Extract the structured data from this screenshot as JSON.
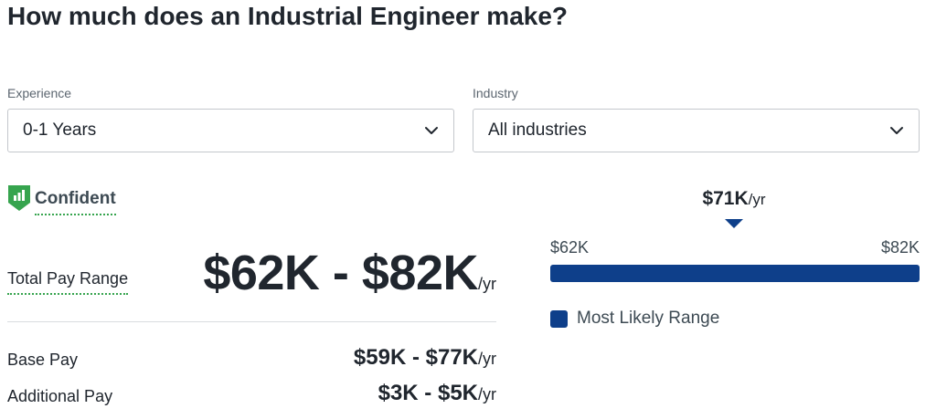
{
  "page": {
    "title": "How much does an Industrial Engineer make?"
  },
  "filters": {
    "experience": {
      "label": "Experience",
      "value": "0-1 Years"
    },
    "industry": {
      "label": "Industry",
      "value": "All industries"
    }
  },
  "confidence": {
    "label": "Confident",
    "icon": "bar-chart-shield-icon",
    "color": "#36a44e"
  },
  "total_pay": {
    "label": "Total Pay Range",
    "value": "$62K - $82K",
    "unit": "/yr"
  },
  "base_pay": {
    "label": "Base Pay",
    "value": "$59K - $77K",
    "unit": "/yr"
  },
  "additional_pay": {
    "label": "Additional Pay",
    "value": "$3K - $5K",
    "unit": "/yr"
  },
  "range_chart": {
    "median": "$71K",
    "median_unit": "/yr",
    "min": "$62K",
    "max": "$82K",
    "legend": "Most Likely Range",
    "bar_color": "#0e3f8a"
  }
}
